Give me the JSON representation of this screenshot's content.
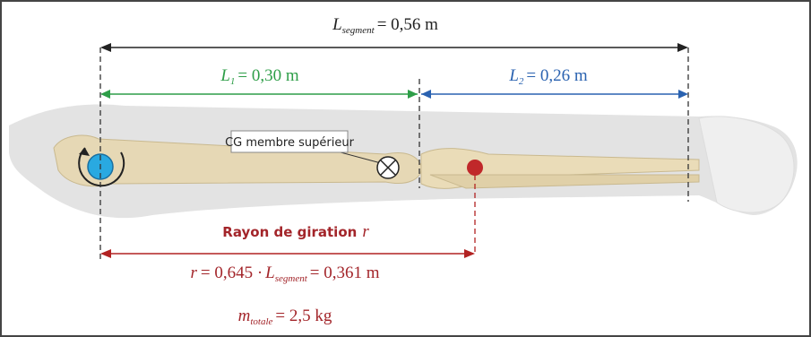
{
  "labels": {
    "segment_length": {
      "symbol": "L",
      "subscript": "segment",
      "value": "= 0,56 m"
    },
    "l1": {
      "symbol": "L",
      "subscript": "1",
      "value": "= 0,30 m"
    },
    "l2": {
      "symbol": "L",
      "subscript": "2",
      "value": "= 0,26 m"
    },
    "cg": "CG membre supérieur",
    "gyration_title": {
      "text": "Rayon de giration",
      "symbol": "r"
    },
    "gyration_formula": {
      "symbol": "r",
      "factor": "= 0,645 ·",
      "l_symbol": "L",
      "l_subscript": "segment",
      "value": "= 0,361 m"
    },
    "mass": {
      "symbol": "m",
      "subscript": "totale",
      "value": "= 2,5 kg"
    }
  }
}
